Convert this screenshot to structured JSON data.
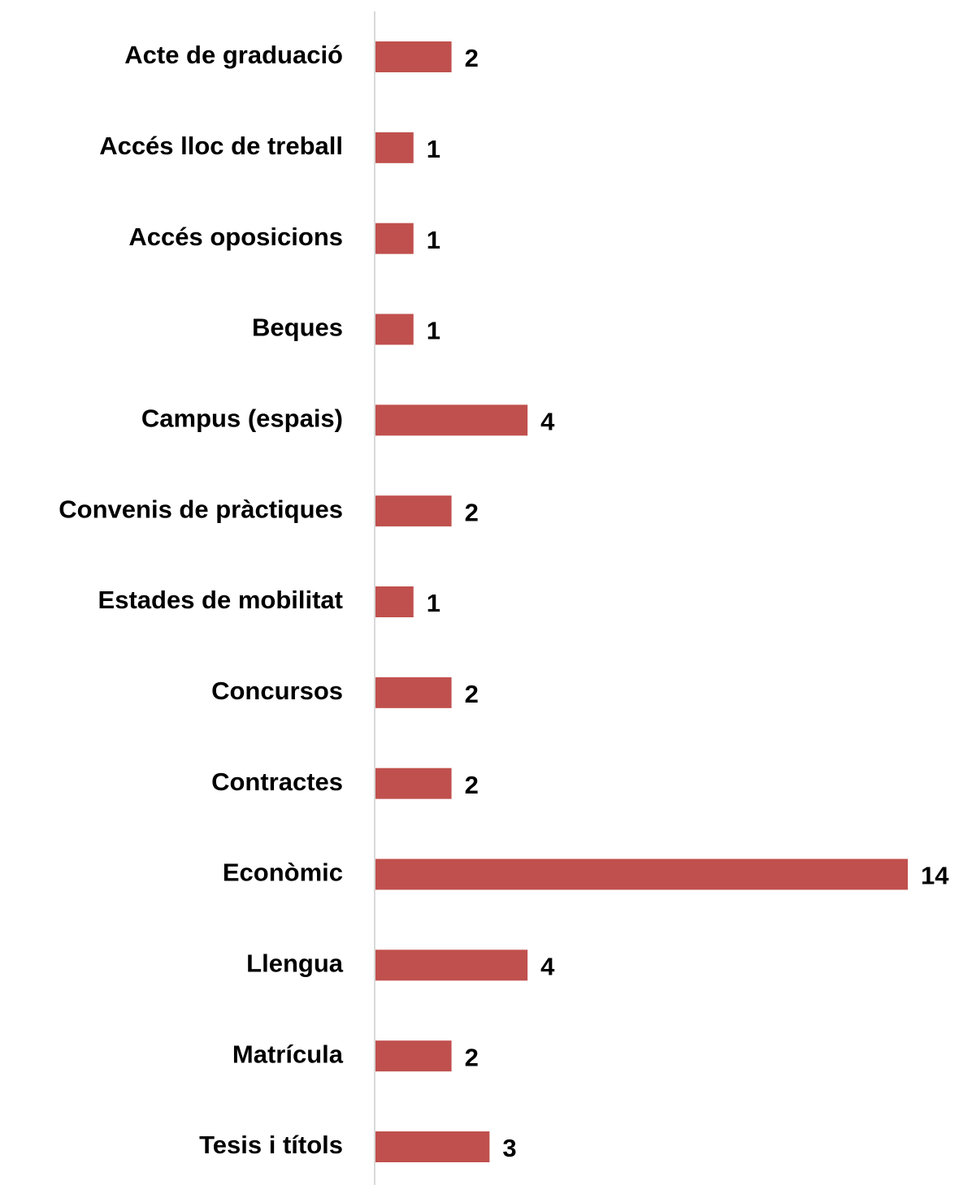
{
  "chart_data": {
    "type": "bar",
    "orientation": "horizontal",
    "categories": [
      "Acte de graduació",
      "Accés lloc de treball",
      "Accés oposicions",
      "Beques",
      "Campus (espais)",
      "Convenis de pràctiques",
      "Estades de mobilitat",
      "Concursos",
      "Contractes",
      "Econòmic",
      "Llengua",
      "Matrícula",
      "Tesis i títols"
    ],
    "values": [
      2,
      1,
      1,
      1,
      4,
      2,
      1,
      2,
      2,
      14,
      4,
      2,
      3
    ],
    "color": "#c0504d",
    "xlim": [
      0,
      14
    ]
  }
}
